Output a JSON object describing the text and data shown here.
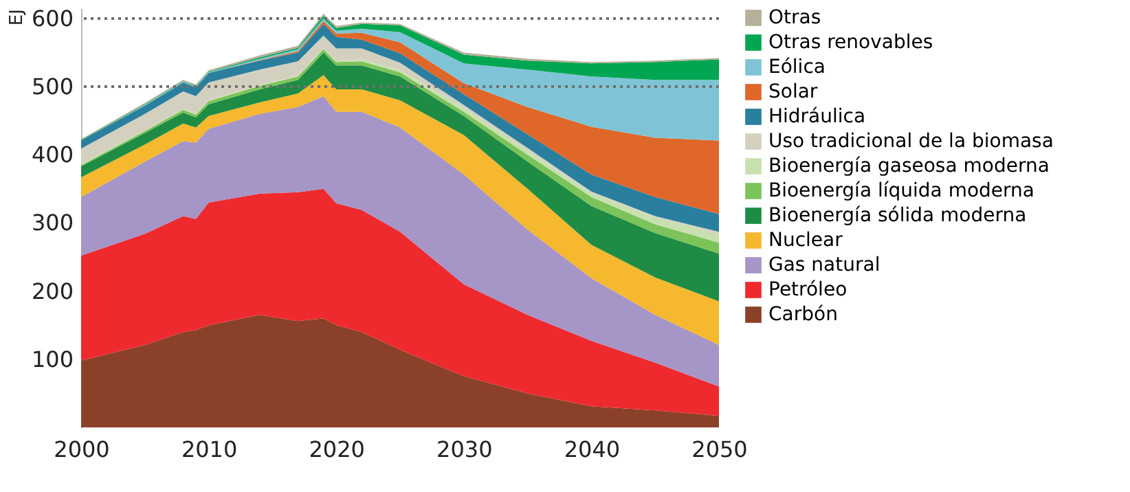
{
  "chart_data": {
    "type": "area",
    "stacked": true,
    "ylabel": "EJ",
    "legend": "right",
    "grid": false,
    "x": [
      2000,
      2005,
      2008,
      2009,
      2010,
      2014,
      2017,
      2019,
      2020,
      2022,
      2025,
      2030,
      2035,
      2040,
      2045,
      2050
    ],
    "xlim": [
      2000,
      2050
    ],
    "xticks": [
      2000,
      2010,
      2020,
      2030,
      2040,
      2050
    ],
    "ylim": [
      0,
      615
    ],
    "yticks": [
      100,
      200,
      300,
      400,
      500,
      600
    ],
    "ref_lines": [
      {
        "axis": "y",
        "value": 600,
        "color": "#707070",
        "line_style": "dotted"
      },
      {
        "axis": "y",
        "value": 500,
        "color": "#707070",
        "line_style": "dotted"
      }
    ],
    "series": [
      {
        "name": "Carbón",
        "color": "#8b4129",
        "values": [
          98,
          121,
          140,
          143,
          150,
          165,
          156,
          160,
          150,
          140,
          114,
          75,
          50,
          31,
          25,
          17
        ]
      },
      {
        "name": "Petróleo",
        "color": "#ee2a2f",
        "values": [
          154,
          163,
          170,
          163,
          180,
          178,
          189,
          190,
          179,
          179,
          173,
          135,
          115,
          96,
          70,
          43
        ]
      },
      {
        "name": "Gas natural",
        "color": "#a695c7",
        "values": [
          86,
          106,
          110,
          112,
          108,
          117,
          125,
          136,
          134,
          144,
          153,
          161,
          125,
          92,
          70,
          61
        ]
      },
      {
        "name": "Nuclear",
        "color": "#f5b82e",
        "values": [
          29,
          25,
          26,
          22,
          19,
          17,
          20,
          31,
          33,
          33,
          40,
          58,
          60,
          49,
          55,
          64
        ]
      },
      {
        "name": "Bioenergía sólida moderna",
        "color": "#1e8c45",
        "values": [
          16,
          17,
          16,
          15,
          17,
          19,
          20,
          33,
          35,
          35,
          35,
          28,
          40,
          57,
          65,
          70
        ]
      },
      {
        "name": "Bioenergía líquida moderna",
        "color": "#7cc35a",
        "values": [
          2,
          3,
          4,
          4,
          5,
          5,
          5,
          5,
          5,
          6,
          6,
          6,
          10,
          13,
          13,
          16
        ]
      },
      {
        "name": "Bioenergía gaseosa moderna",
        "color": "#c8e0b0",
        "values": [
          1,
          1,
          1,
          1,
          1,
          1,
          1,
          1,
          1,
          3,
          3,
          6,
          6,
          6,
          10,
          13
        ]
      },
      {
        "name": "Uso tradicional de la biomasa",
        "color": "#d4d0c0",
        "values": [
          23,
          24,
          26,
          26,
          26,
          23,
          21,
          19,
          19,
          16,
          11,
          4,
          4,
          2,
          2,
          3
        ]
      },
      {
        "name": "Hidráulica",
        "color": "#2a7f9e",
        "values": [
          12,
          12,
          13,
          13,
          14,
          13,
          13,
          17,
          17,
          13,
          14,
          16,
          20,
          25,
          28,
          26
        ]
      },
      {
        "name": "Solar",
        "color": "#e0672a",
        "values": [
          0,
          0,
          0,
          0,
          0,
          1,
          2,
          4,
          5,
          10,
          16,
          16,
          40,
          70,
          87,
          108
        ]
      },
      {
        "name": "Eólica",
        "color": "#7ec4d6",
        "values": [
          0,
          1,
          1,
          1,
          1,
          2,
          3,
          4,
          4,
          6,
          15,
          29,
          55,
          74,
          85,
          89
        ]
      },
      {
        "name": "Otras renovables",
        "color": "#00a651",
        "values": [
          1,
          1,
          1,
          1,
          1,
          2,
          2,
          4,
          4,
          7,
          10,
          13,
          13,
          19,
          26,
          30
        ]
      },
      {
        "name": "Otras",
        "color": "#b5b09a",
        "values": [
          1,
          2,
          2,
          2,
          2,
          3,
          3,
          3,
          3,
          2,
          2,
          3,
          3,
          2,
          2,
          2
        ]
      }
    ]
  }
}
